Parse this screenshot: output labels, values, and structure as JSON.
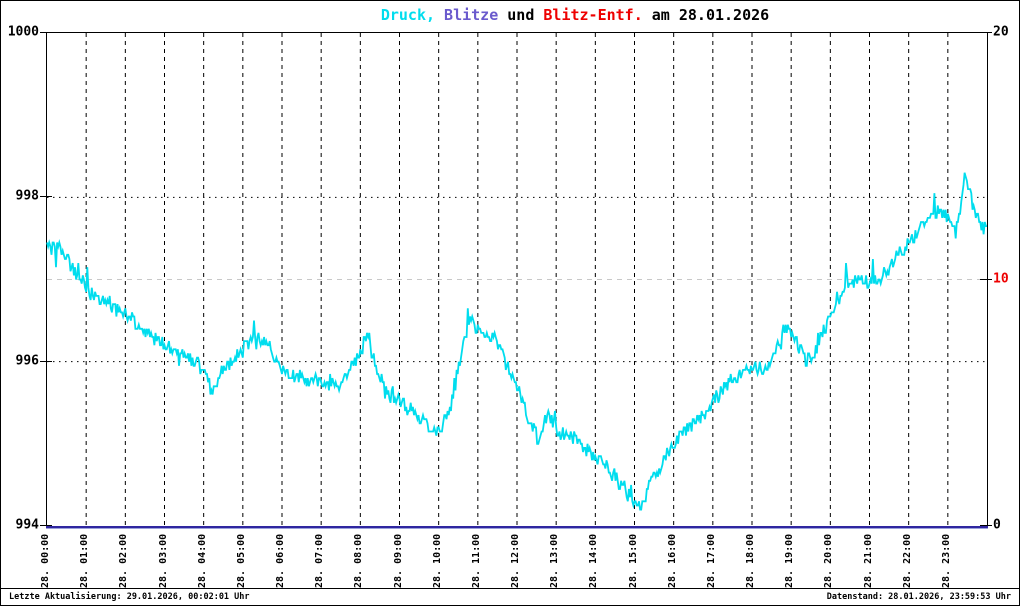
{
  "window": {
    "kind": "weather-station pressure/lightning day chart"
  },
  "title": {
    "full_text": "Druck, Blitze und Blitz-Entf. am 28.01.2026",
    "segments": [
      {
        "text": "Druck,",
        "color": "#00DDEE"
      },
      {
        "text": " Blitze",
        "color": "#6A5ACD"
      },
      {
        "text": " und ",
        "color": "#000000"
      },
      {
        "text": "Blitz-Entf.",
        "color": "#EE0000"
      },
      {
        "text": " am 28.01.2026",
        "color": "#000000"
      }
    ]
  },
  "status_bar": {
    "left": "Letzte Aktualisierung: 29.01.2026, 00:02:01 Uhr",
    "right": "Datenstand: 28.01.2026, 23:59:53 Uhr"
  },
  "chart_data": {
    "type": "line",
    "title": "Druck, Blitze und Blitz-Entf. am 28.01.2026",
    "date": "28.01.2026",
    "grid": "vertical black dashed per hour; horizontal black dotted at 996 and 998 hPa; light gray dashed at right-axis 10",
    "legend_position": "none",
    "x_axis": {
      "unit": "time (hourly)",
      "range_hours": [
        0,
        24
      ],
      "tick_labels": [
        "28. 00:00",
        "28. 01:00",
        "28. 02:00",
        "28. 03:00",
        "28. 04:00",
        "28. 05:00",
        "28. 06:00",
        "28. 07:00",
        "28. 08:00",
        "28. 09:00",
        "28. 10:00",
        "28. 11:00",
        "28. 12:00",
        "28. 13:00",
        "28. 14:00",
        "28. 15:00",
        "28. 16:00",
        "28. 17:00",
        "28. 18:00",
        "28. 19:00",
        "28. 20:00",
        "28. 21:00",
        "28. 22:00",
        "28. 23:00"
      ]
    },
    "y_axis_left": {
      "series": "Druck (hPa)",
      "range": [
        994,
        1000
      ],
      "ticks": [
        994,
        996,
        998,
        1000
      ],
      "gridline_ticks": [
        996,
        998
      ],
      "label_color": "#000000"
    },
    "y_axis_right": {
      "series": "Blitze / Blitz-Entf.",
      "range": [
        0,
        20
      ],
      "ticks": [
        {
          "value": 0,
          "color": "#000000"
        },
        {
          "value": 10,
          "color": "#EE0000"
        },
        {
          "value": 20,
          "color": "#000000"
        }
      ],
      "gridline_value": 10,
      "gridline_color": "#C8C8C8"
    },
    "series": [
      {
        "name": "Druck",
        "axis": "left",
        "unit": "hPa",
        "color": "#00DDEE",
        "style": "noisy minute-resolution trace",
        "noise_amplitude_hpa": 0.08,
        "anchors_hour_value": [
          [
            0,
            997.45
          ],
          [
            0.3,
            997.4
          ],
          [
            0.5,
            997.25
          ],
          [
            0.8,
            997.05
          ],
          [
            1,
            996.9
          ],
          [
            1.3,
            996.75
          ],
          [
            1.7,
            996.65
          ],
          [
            2,
            996.6
          ],
          [
            2.4,
            996.4
          ],
          [
            2.7,
            996.3
          ],
          [
            3,
            996.2
          ],
          [
            3.5,
            996.05
          ],
          [
            4,
            995.95
          ],
          [
            4.2,
            995.62
          ],
          [
            4.5,
            995.9
          ],
          [
            5,
            996.15
          ],
          [
            5.4,
            996.3
          ],
          [
            5.7,
            996.15
          ],
          [
            6,
            995.9
          ],
          [
            6.5,
            995.8
          ],
          [
            7,
            995.75
          ],
          [
            7.5,
            995.7
          ],
          [
            7.9,
            996.05
          ],
          [
            8.2,
            996.3
          ],
          [
            8.5,
            995.8
          ],
          [
            8.7,
            995.6
          ],
          [
            9,
            995.5
          ],
          [
            9.5,
            995.35
          ],
          [
            9.8,
            995.2
          ],
          [
            10.05,
            995.15
          ],
          [
            10.3,
            995.45
          ],
          [
            10.6,
            996.2
          ],
          [
            10.8,
            996.5
          ],
          [
            11,
            996.4
          ],
          [
            11.4,
            996.3
          ],
          [
            11.7,
            996.05
          ],
          [
            12,
            995.7
          ],
          [
            12.3,
            995.3
          ],
          [
            12.55,
            995.05
          ],
          [
            12.8,
            995.35
          ],
          [
            13,
            995.15
          ],
          [
            13.5,
            995.05
          ],
          [
            14,
            994.85
          ],
          [
            14.5,
            994.6
          ],
          [
            15,
            994.3
          ],
          [
            15.1,
            994.2
          ],
          [
            15.5,
            994.6
          ],
          [
            16,
            995
          ],
          [
            16.5,
            995.25
          ],
          [
            17,
            995.5
          ],
          [
            17.5,
            995.8
          ],
          [
            18,
            995.9
          ],
          [
            18.5,
            995.95
          ],
          [
            18.85,
            996.45
          ],
          [
            19.1,
            996.25
          ],
          [
            19.4,
            996
          ],
          [
            19.7,
            996.2
          ],
          [
            20,
            996.55
          ],
          [
            20.4,
            996.95
          ],
          [
            20.7,
            997
          ],
          [
            21,
            996.95
          ],
          [
            21.3,
            997.05
          ],
          [
            21.6,
            997.2
          ],
          [
            22,
            997.45
          ],
          [
            22.5,
            997.75
          ],
          [
            22.8,
            997.85
          ],
          [
            23,
            997.75
          ],
          [
            23.2,
            997.55
          ],
          [
            23.45,
            998.3
          ],
          [
            23.6,
            997.95
          ],
          [
            23.8,
            997.7
          ],
          [
            24,
            997.6
          ]
        ]
      },
      {
        "name": "Blitze",
        "axis": "right",
        "unit": "count",
        "color": "#2F26A0",
        "constant_value": 0,
        "note": "flat line at 0 along the bottom axis all day"
      },
      {
        "name": "Blitz-Entf.",
        "axis": "right",
        "unit": "km",
        "color": "#EE0000",
        "values": [],
        "note": "no data points visible (no lightning)"
      }
    ]
  }
}
